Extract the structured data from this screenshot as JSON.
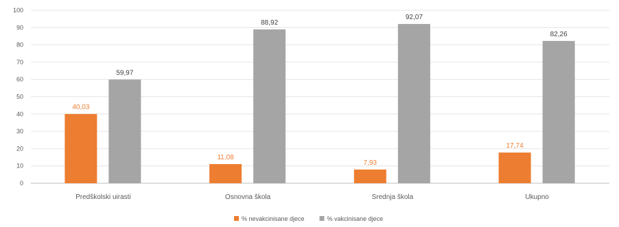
{
  "chart_data": {
    "type": "bar",
    "categories": [
      "Predškolski uirasti",
      "Osnovna škola",
      "Srednja škola",
      "Ukupno"
    ],
    "series": [
      {
        "name": "% nevakcinisane djece",
        "color": "#ED7D31",
        "values": [
          40.03,
          11.08,
          7.93,
          17.74
        ],
        "labels": [
          "40,03",
          "11,08",
          "7,93",
          "17,74"
        ]
      },
      {
        "name": "% vakcinisane djece",
        "color": "#A5A5A5",
        "values": [
          59.97,
          88.92,
          92.07,
          82.26
        ],
        "labels": [
          "59,97",
          "88,92",
          "92,07",
          "82,26"
        ]
      }
    ],
    "ylim": [
      0,
      100
    ],
    "yticks": [
      "0",
      "10",
      "20",
      "30",
      "40",
      "50",
      "60",
      "70",
      "80",
      "90",
      "100"
    ],
    "grid": true,
    "legend_position": "bottom"
  }
}
